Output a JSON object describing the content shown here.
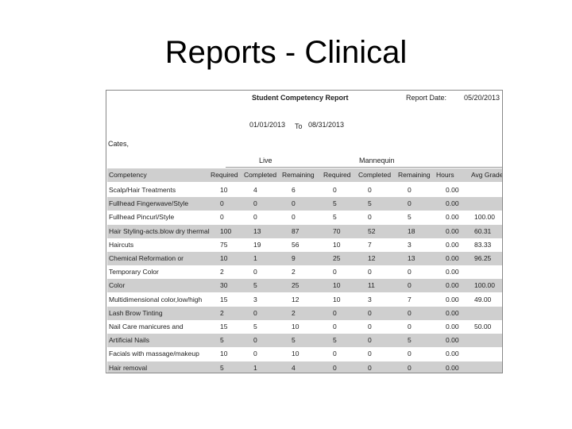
{
  "slide_title": "Reports - Clinical",
  "report": {
    "title": "Student Competency Report",
    "report_date_label": "Report Date:",
    "report_date": "05/20/2013",
    "date_from": "01/01/2013",
    "date_to_label": "To",
    "date_to": "08/31/2013",
    "student": "Cates,",
    "group_headers": [
      "Live",
      "Mannequin"
    ],
    "columns": [
      "Competency",
      "Required",
      "Completed",
      "Remaining",
      "Required",
      "Completed",
      "Remaining",
      "Hours",
      "Avg Grade"
    ],
    "rows": [
      [
        "Scalp/Hair Treatments",
        10,
        4,
        6,
        0,
        0,
        0,
        "0.00",
        null
      ],
      [
        "Fullhead Fingerwave/Style",
        0,
        0,
        0,
        5,
        5,
        0,
        "0.00",
        null
      ],
      [
        "Fullhead Pincurl/Style",
        0,
        0,
        0,
        5,
        0,
        5,
        "0.00",
        "100.00"
      ],
      [
        "Hair Styling-acts.blow dry thermal",
        100,
        13,
        87,
        70,
        52,
        18,
        "0.00",
        "60.31"
      ],
      [
        "Haircuts",
        75,
        19,
        56,
        10,
        7,
        3,
        "0.00",
        "83.33"
      ],
      [
        "Chemical Reformation or",
        10,
        1,
        9,
        25,
        12,
        13,
        "0.00",
        "96.25"
      ],
      [
        "Temporary Color",
        2,
        0,
        2,
        0,
        0,
        0,
        "0.00",
        null
      ],
      [
        "Color",
        30,
        5,
        25,
        10,
        11,
        0,
        "0.00",
        "100.00"
      ],
      [
        "Multidimensional color,low/high",
        15,
        3,
        12,
        10,
        3,
        7,
        "0.00",
        "49.00"
      ],
      [
        "Lash Brow Tinting",
        2,
        0,
        2,
        0,
        0,
        0,
        "0.00",
        null
      ],
      [
        "Nail Care manicures and",
        15,
        5,
        10,
        0,
        0,
        0,
        "0.00",
        "50.00"
      ],
      [
        "Artificial Nails",
        5,
        0,
        5,
        5,
        0,
        5,
        "0.00",
        null
      ],
      [
        "Facials with massage/makeup",
        10,
        0,
        10,
        0,
        0,
        0,
        "0.00",
        null
      ],
      [
        "Hair removal",
        5,
        1,
        4,
        0,
        0,
        0,
        "0.00",
        null
      ]
    ]
  }
}
